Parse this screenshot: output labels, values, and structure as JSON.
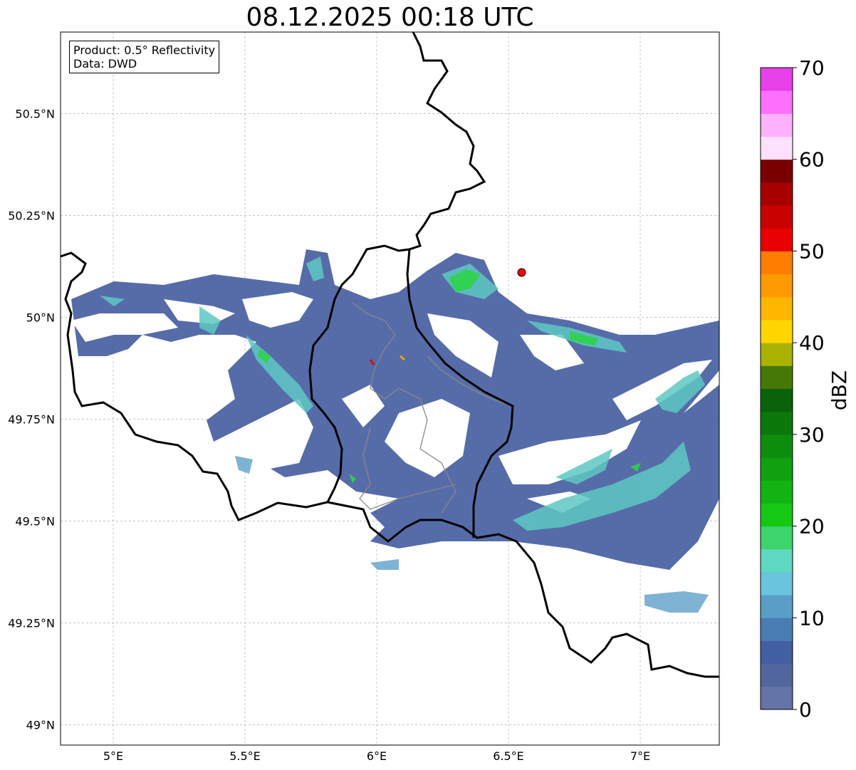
{
  "title": "08.12.2025 00:18 UTC",
  "info_box": {
    "product": "Product: 0.5° Reflectivity",
    "data": "Data: DWD"
  },
  "map": {
    "lon_range": [
      4.8,
      7.3
    ],
    "lat_range": [
      48.95,
      50.7
    ],
    "lon_ticks": [
      {
        "value": 5.0,
        "label": "5°E"
      },
      {
        "value": 5.5,
        "label": "5.5°E"
      },
      {
        "value": 6.0,
        "label": "6°E"
      },
      {
        "value": 6.5,
        "label": "6.5°E"
      },
      {
        "value": 7.0,
        "label": "7°E"
      }
    ],
    "lat_ticks": [
      {
        "value": 49.0,
        "label": "49°N"
      },
      {
        "value": 49.25,
        "label": "49.25°N"
      },
      {
        "value": 49.5,
        "label": "49.5°N"
      },
      {
        "value": 49.75,
        "label": "49.75°N"
      },
      {
        "value": 50.0,
        "label": "50°N"
      },
      {
        "value": 50.25,
        "label": "50.25°N"
      },
      {
        "value": 50.5,
        "label": "50.5°N"
      }
    ],
    "radar_site": {
      "lon": 6.55,
      "lat": 50.11,
      "color": "#ff0000"
    },
    "country_border_color": "#000000",
    "admin_border_color": "#888888"
  },
  "colorbar": {
    "label": "dBZ",
    "min": 0,
    "max": 70,
    "step": 2.5,
    "tick_values": [
      0,
      10,
      20,
      30,
      40,
      50,
      60,
      70
    ],
    "colors": [
      "#6474a8",
      "#52669e",
      "#425fa2",
      "#4a7cb4",
      "#5a9ec8",
      "#6ac4dc",
      "#5ed8c0",
      "#3cd46c",
      "#14c814",
      "#12b412",
      "#10a010",
      "#0e8c0e",
      "#0c780c",
      "#0a620a",
      "#467808",
      "#aab202",
      "#ffd600",
      "#ffb600",
      "#ff9a00",
      "#ff7e00",
      "#e80000",
      "#c80000",
      "#a80000",
      "#7a0000",
      "#ffe0ff",
      "#ffb0ff",
      "#ff70ff",
      "#e840e8"
    ]
  }
}
